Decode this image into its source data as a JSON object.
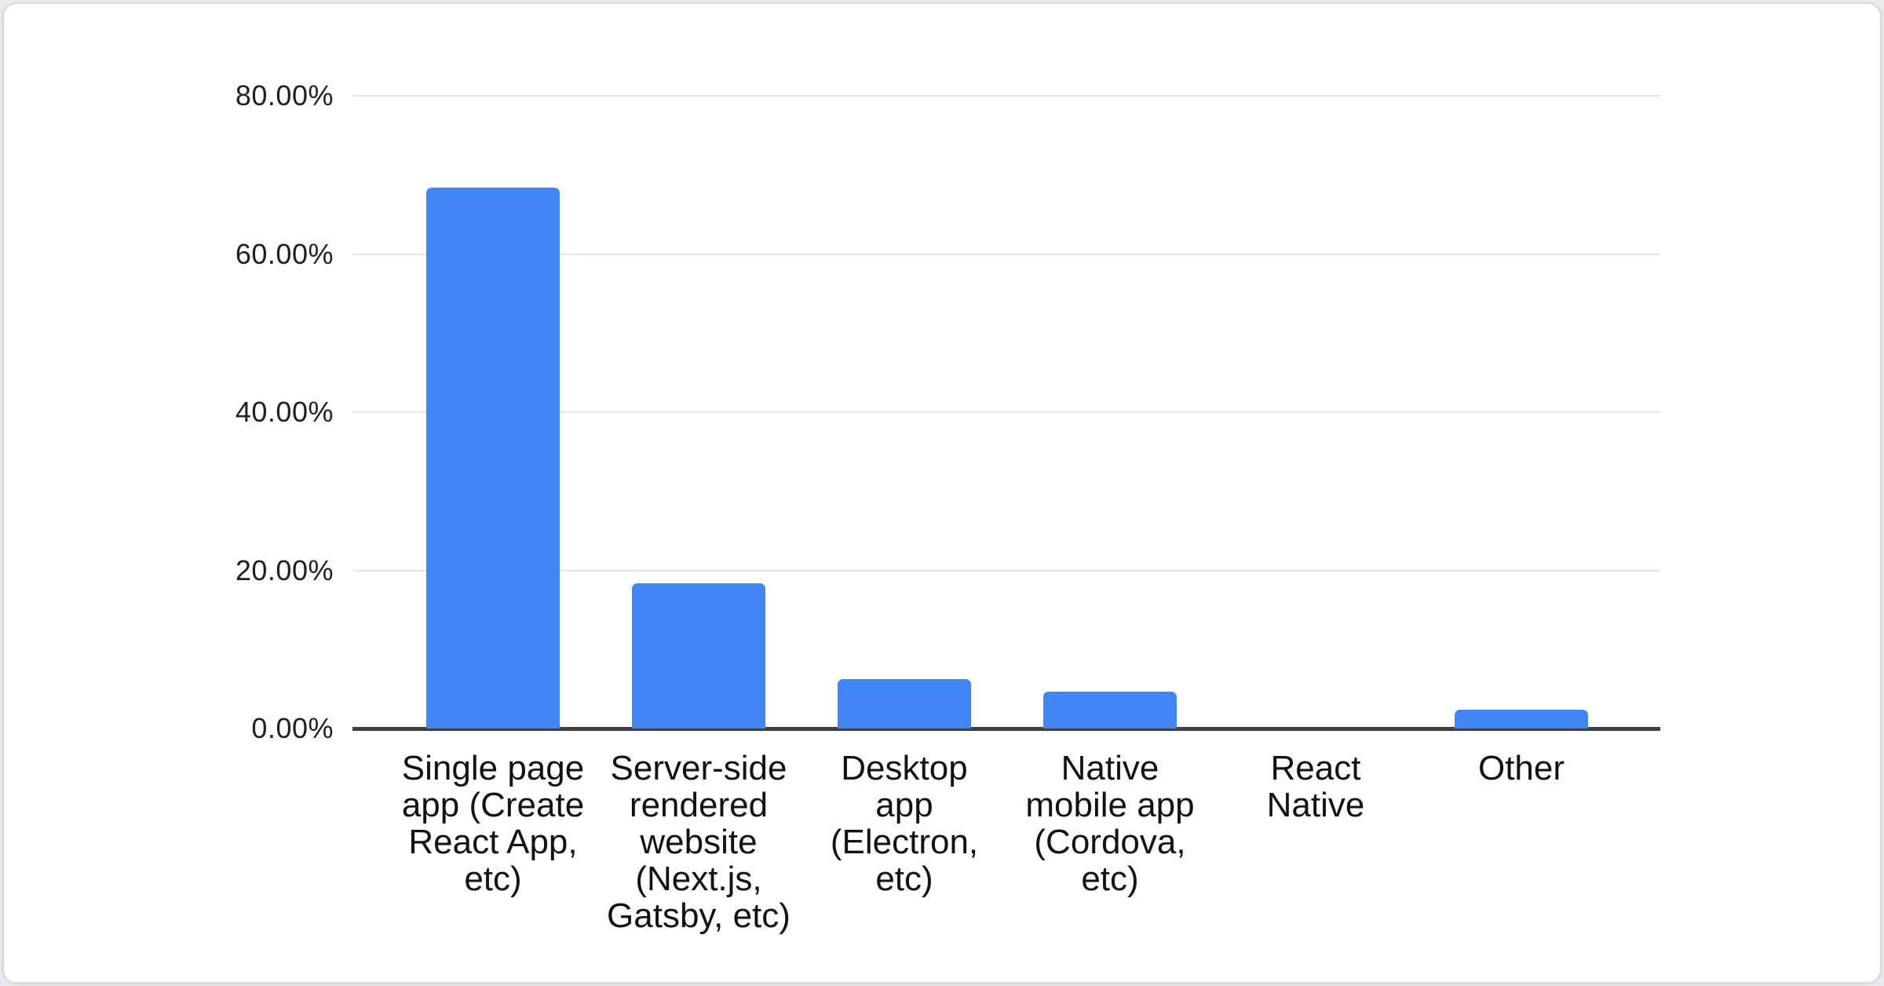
{
  "page": {
    "background_color": "#e8eaed",
    "card_background": "#ffffff",
    "card_border_color": "#d9dadc"
  },
  "chart_data": {
    "type": "bar",
    "title": "",
    "xlabel": "",
    "ylabel": "",
    "categories": [
      "Single page app (Create React App, etc)",
      "Server-side rendered website (Next.js, Gatsby, etc)",
      "Desktop app (Electron, etc)",
      "Native mobile app (Cordova, etc)",
      "React Native",
      "Other"
    ],
    "category_display": [
      "Single page\napp (Create\nReact App,\netc)",
      "Server-side\nrendered\nwebsite\n(Next.js,\nGatsby, etc)",
      "Desktop\napp\n(Electron,\netc)",
      "Native\nmobile app\n(Cordova,\netc)",
      "React\nNative",
      "Other"
    ],
    "values": [
      68.4,
      18.4,
      6.3,
      4.7,
      0.0,
      2.4
    ],
    "value_unit": "%",
    "y_ticks": [
      "0.00%",
      "20.00%",
      "40.00%",
      "60.00%",
      "80.00%"
    ],
    "ylim": [
      0,
      80
    ],
    "grid": true,
    "legend_position": "none",
    "bar_color": "#4285f4",
    "gridline_color": "#e4e4e4",
    "axis_line_color": "#3f4043",
    "tick_text_color": "#1f1f1f",
    "category_text_color": "#121212"
  }
}
